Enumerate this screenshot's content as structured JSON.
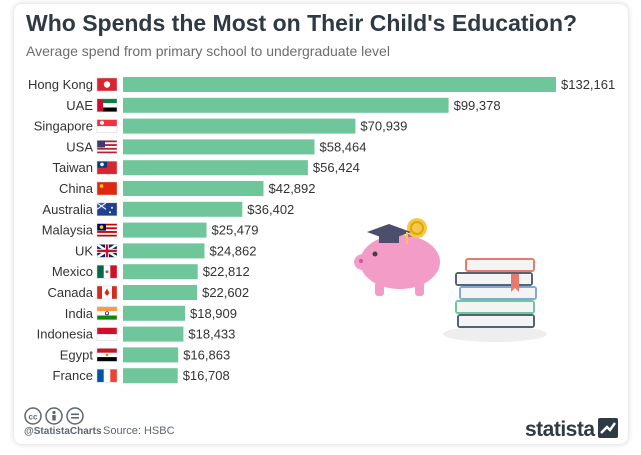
{
  "title": "Who Spends the Most on Their Child's Education?",
  "subtitle": "Average spend from primary school to undergraduate level",
  "footer": {
    "handle": "@StatistaCharts",
    "source": "Source: HSBC",
    "brand": "statista"
  },
  "colors": {
    "bar": "#6fc69a",
    "title": "#2f3a44",
    "label": "#333333"
  },
  "chart_data": {
    "type": "bar",
    "orientation": "horizontal",
    "title": "Who Spends the Most on Their Child's Education?",
    "subtitle": "Average spend from primary school to undergraduate level",
    "categories": [
      "Hong Kong",
      "UAE",
      "Singapore",
      "USA",
      "Taiwan",
      "China",
      "Australia",
      "Malaysia",
      "UK",
      "Mexico",
      "Canada",
      "India",
      "Indonesia",
      "Egypt",
      "France"
    ],
    "values": [
      132161,
      99378,
      70939,
      58464,
      56424,
      42892,
      36402,
      25479,
      24862,
      22812,
      22602,
      18909,
      18433,
      16863,
      16708
    ],
    "value_labels": [
      "$132,161",
      "$99,378",
      "$70,939",
      "$58,464",
      "$56,424",
      "$42,892",
      "$36,402",
      "$25,479",
      "$24,862",
      "$22,812",
      "$22,602",
      "$18,909",
      "$18,433",
      "$16,863",
      "$16,708"
    ],
    "flags": [
      "hong-kong-flag-icon",
      "uae-flag-icon",
      "singapore-flag-icon",
      "usa-flag-icon",
      "taiwan-flag-icon",
      "china-flag-icon",
      "australia-flag-icon",
      "malaysia-flag-icon",
      "uk-flag-icon",
      "mexico-flag-icon",
      "canada-flag-icon",
      "india-flag-icon",
      "indonesia-flag-icon",
      "egypt-flag-icon",
      "france-flag-icon"
    ],
    "xlim": [
      0,
      132161
    ],
    "grid": false,
    "legend": "none"
  }
}
